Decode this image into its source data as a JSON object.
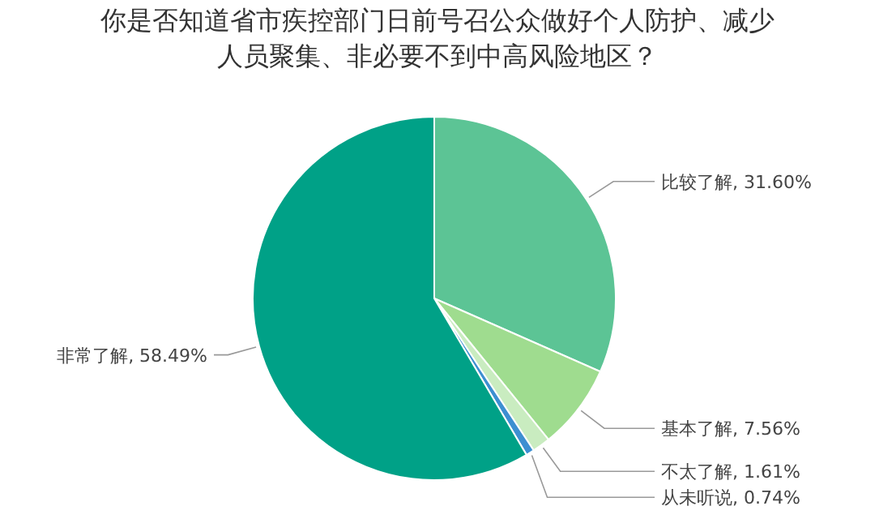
{
  "chart_data": {
    "type": "pie",
    "title": "你是否知道省市疾控部门日前号召公众做好个人防护、减少人员聚集、非必要不到中高风险地区？",
    "categories": [
      "比较了解",
      "基本了解",
      "不太了解",
      "从未听说",
      "非常了解"
    ],
    "values": [
      31.6,
      7.56,
      1.61,
      0.74,
      58.49
    ],
    "value_labels": [
      "31.60%",
      "7.56%",
      "1.61%",
      "0.74%",
      "58.49%"
    ],
    "colors": [
      "#5cc495",
      "#9fdc8f",
      "#c9ecc0",
      "#3d8fd1",
      "#00a187"
    ]
  }
}
